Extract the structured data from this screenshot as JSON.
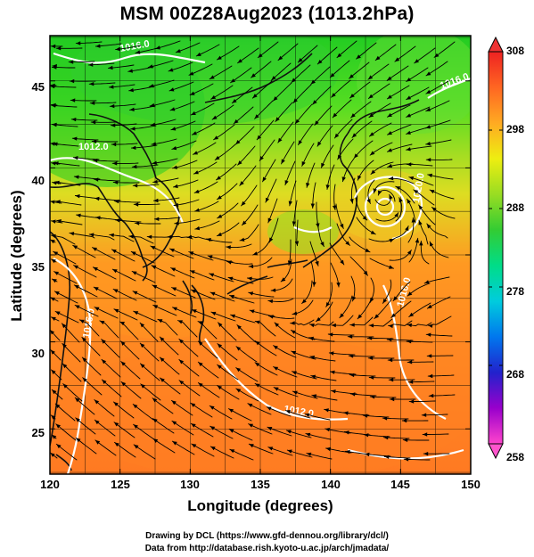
{
  "title": "MSM 00Z28Aug2023 (1013.2hPa)",
  "xlabel": "Longitude (degrees)",
  "ylabel": "Latitude  (degrees)",
  "x_ticks": [
    "120",
    "125",
    "130",
    "135",
    "140",
    "145",
    "150"
  ],
  "y_ticks": [
    "25",
    "30",
    "35",
    "40",
    "45"
  ],
  "colorbar": {
    "ticks": [
      "308",
      "298",
      "288",
      "278",
      "268",
      "258"
    ],
    "range": [
      258,
      308
    ],
    "palette": [
      "#ff44cc",
      "#9900cc",
      "#2222cc",
      "#0077ee",
      "#00ccdd",
      "#00dd88",
      "#33cc33",
      "#99dd22",
      "#eeee11",
      "#ffaa22",
      "#ff6622",
      "#ee2222"
    ]
  },
  "map": {
    "lon_range": [
      120,
      150
    ],
    "lat_range": [
      22.4,
      47.6
    ],
    "grid_step_deg": 2.5,
    "field": "near-surface temperature (K) with wind streamlines",
    "contour_labels": [
      "1016.0",
      "1012.0",
      "1016.0",
      "1012.0",
      "1016.0",
      "1020.0",
      "1016.0"
    ]
  },
  "credits": {
    "line1": "Drawing by DCL (https://www.gfd-dennou.org/library/dcl/)",
    "line2": "Data from http://database.rish.kyoto-u.ac.jp/arch/jmadata/"
  }
}
